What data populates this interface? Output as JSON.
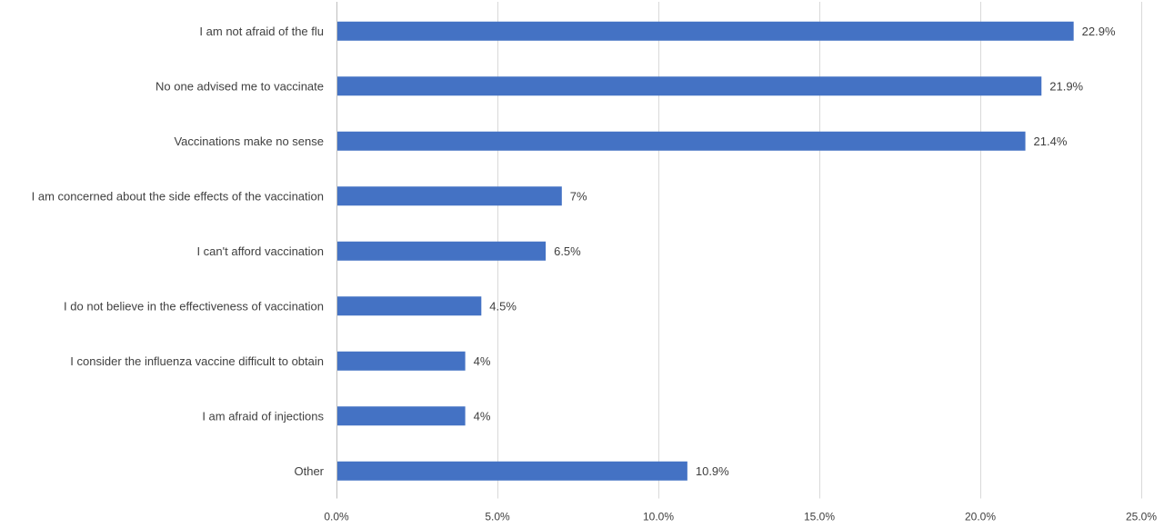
{
  "chart_data": {
    "type": "bar",
    "orientation": "horizontal",
    "categories": [
      "I am not afraid of the flu",
      "No one advised me to vaccinate",
      "Vaccinations make no sense",
      "I am concerned about the side effects of the vaccination",
      "I can't afford vaccination",
      "I do not believe in the effectiveness of vaccination",
      "I consider the influenza vaccine difficult to obtain",
      "I am afraid of injections",
      "Other"
    ],
    "values": [
      22.9,
      21.9,
      21.4,
      7,
      6.5,
      4.5,
      4,
      4,
      10.9
    ],
    "value_labels": [
      "22.9%",
      "21.9%",
      "21.4%",
      "7%",
      "6.5%",
      "4.5%",
      "4%",
      "4%",
      "10.9%"
    ],
    "xticks": [
      0,
      5,
      10,
      15,
      20,
      25
    ],
    "xtick_labels": [
      "0.0%",
      "5.0%",
      "10.0%",
      "15.0%",
      "20.0%",
      "25.0%"
    ],
    "xlim": [
      0,
      25
    ],
    "title": "",
    "xlabel": "",
    "ylabel": "",
    "grid": "vertical",
    "legend": "none",
    "bar_color": "#4472c4"
  }
}
